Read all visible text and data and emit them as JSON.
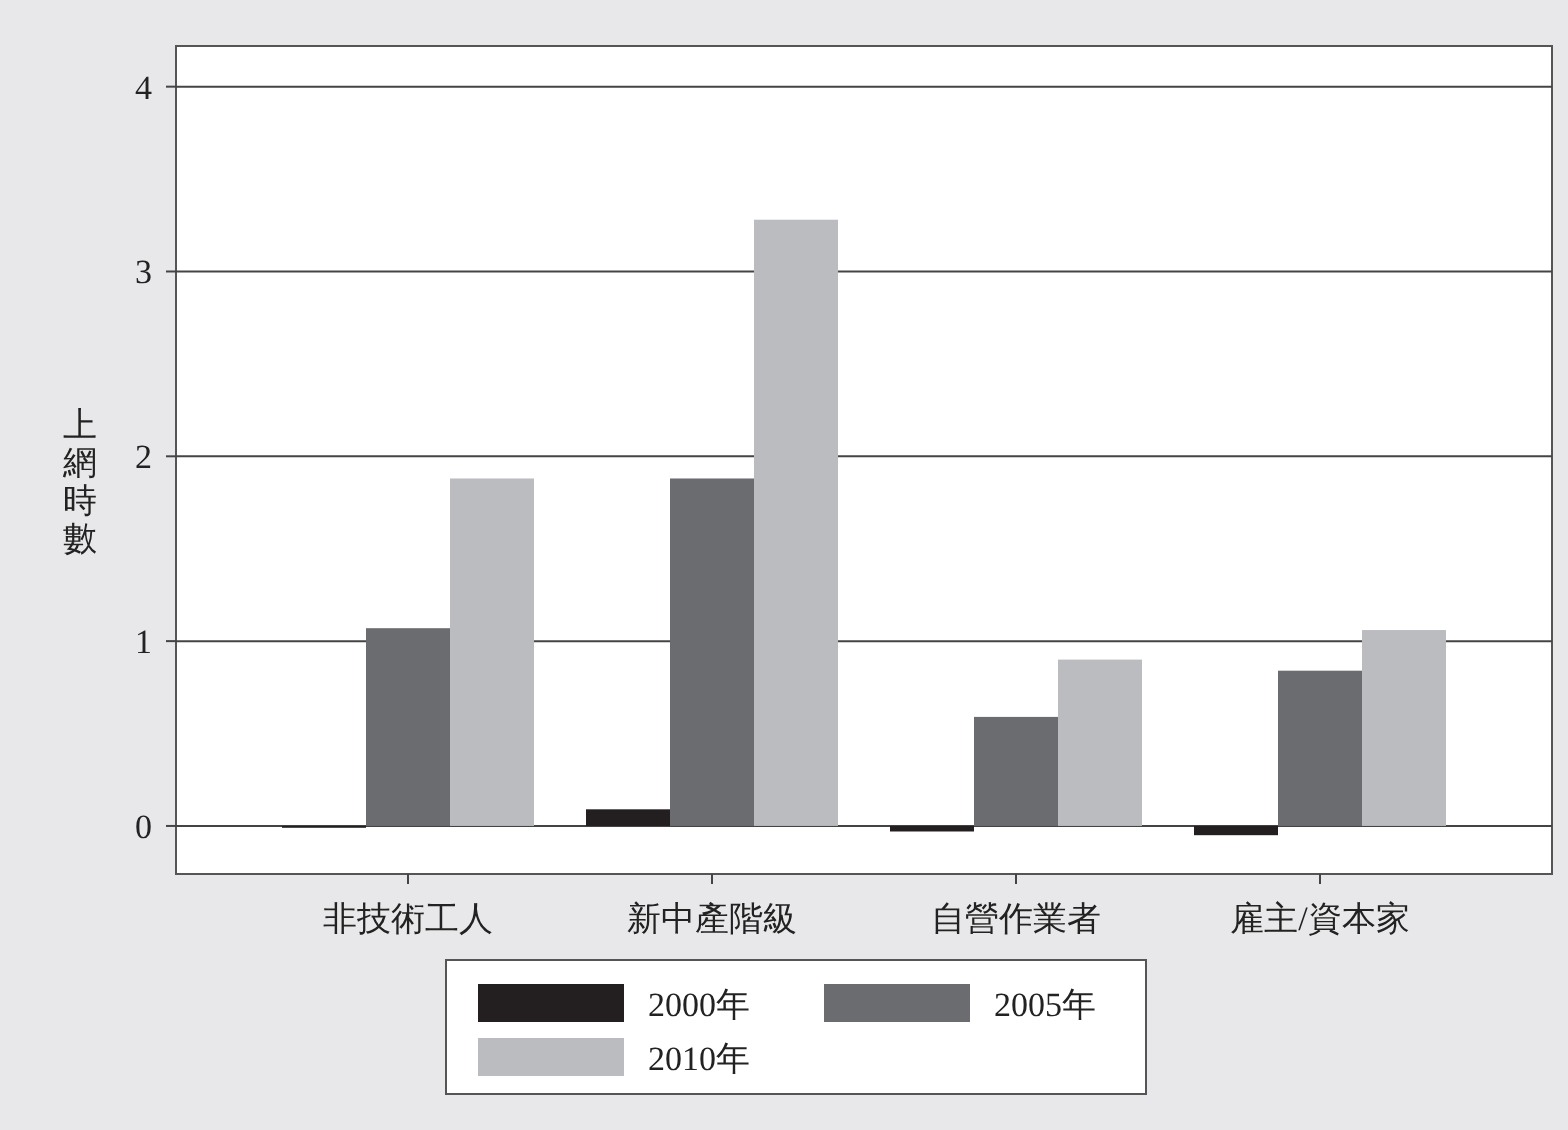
{
  "chart_data": {
    "type": "bar",
    "ylabel": "上網時數",
    "categories": [
      "非技術工人",
      "新中產階級",
      "自營作業者",
      "雇主/資本家"
    ],
    "series": [
      {
        "name": "2000年",
        "color": "#231f20",
        "values": [
          -0.01,
          0.09,
          -0.03,
          -0.05
        ]
      },
      {
        "name": "2005年",
        "color": "#6b6c70",
        "values": [
          1.07,
          1.88,
          0.59,
          0.84
        ]
      },
      {
        "name": "2010年",
        "color": "#bbbcc0",
        "values": [
          1.88,
          3.28,
          0.9,
          1.06
        ]
      }
    ],
    "ylim": [
      -0.26,
      4.22
    ],
    "yticks": [
      0,
      1,
      2,
      3,
      4
    ],
    "grid": "y",
    "legend": "bottom"
  }
}
